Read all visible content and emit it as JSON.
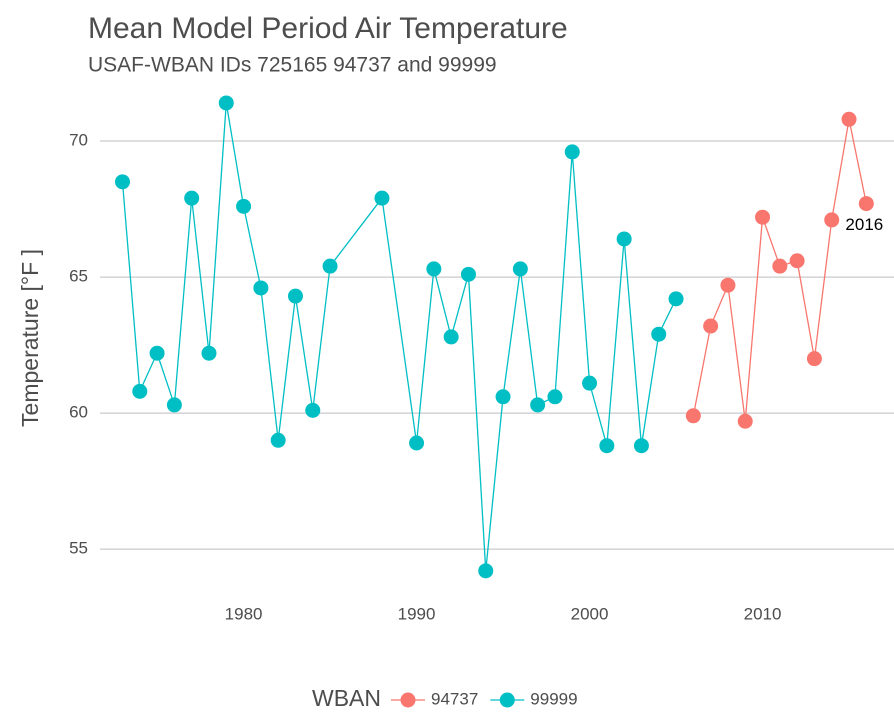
{
  "chart_data": {
    "type": "line",
    "title": "Mean Model Period Air Temperature",
    "subtitle": "USAF-WBAN IDs 725165 94737 and 99999",
    "y_label": "Temperature [°F ]",
    "legend_title": "WBAN",
    "legend_position": "bottom",
    "annotation": "2016",
    "grid": true,
    "xlim": [
      1971.7,
      2017.6
    ],
    "ylim": [
      53.57,
      71.95
    ],
    "xticks": [
      1980,
      1990,
      2000,
      2010
    ],
    "yticks": [
      55,
      60,
      65,
      70
    ],
    "series": [
      {
        "name": "94737",
        "color": "#f8766d",
        "x": [
          2006,
          2007,
          2008,
          2009,
          2010,
          2011,
          2012,
          2013,
          2014,
          2015,
          2016
        ],
        "values": [
          59.9,
          63.2,
          64.7,
          59.7,
          67.2,
          65.4,
          65.6,
          62.0,
          67.1,
          70.8,
          67.7
        ]
      },
      {
        "name": "99999",
        "color": "#00bfc4",
        "x": [
          1973,
          1974,
          1975,
          1976,
          1977,
          1978,
          1979,
          1980,
          1981,
          1982,
          1983,
          1984,
          1985,
          1988,
          1990,
          1991,
          1992,
          1993,
          1994,
          1995,
          1996,
          1997,
          1998,
          1999,
          2000,
          2001,
          2002,
          2003,
          2004,
          2005
        ],
        "values": [
          68.5,
          60.8,
          62.2,
          60.3,
          67.9,
          62.2,
          71.4,
          67.6,
          64.6,
          59.0,
          64.3,
          60.1,
          65.4,
          67.9,
          58.9,
          65.3,
          62.8,
          65.1,
          54.2,
          60.6,
          65.3,
          60.3,
          60.6,
          69.6,
          61.1,
          58.8,
          66.4,
          58.8,
          62.9,
          64.2
        ]
      }
    ]
  }
}
